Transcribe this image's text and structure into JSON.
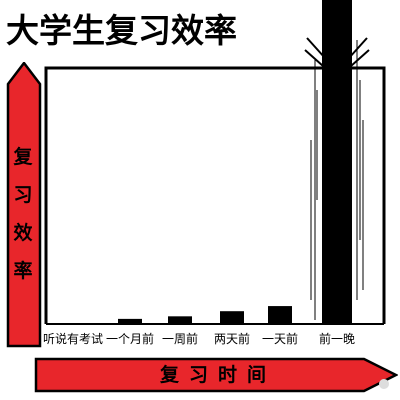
{
  "chart_data": {
    "type": "bar",
    "title": "大学生复习效率",
    "ylabel": "复习效率",
    "xlabel": "复习时间",
    "categories": [
      "听说有考试",
      "一个月前",
      "一周前",
      "两天前",
      "一天前",
      "前一晚"
    ],
    "values": [
      0,
      2,
      3,
      5,
      7,
      100
    ],
    "ylim": [
      0,
      100
    ],
    "colors": {
      "frame": "#000000",
      "bar": "#000000",
      "arrow_fill": "#e8262b",
      "arrow_stroke": "#000000"
    }
  }
}
